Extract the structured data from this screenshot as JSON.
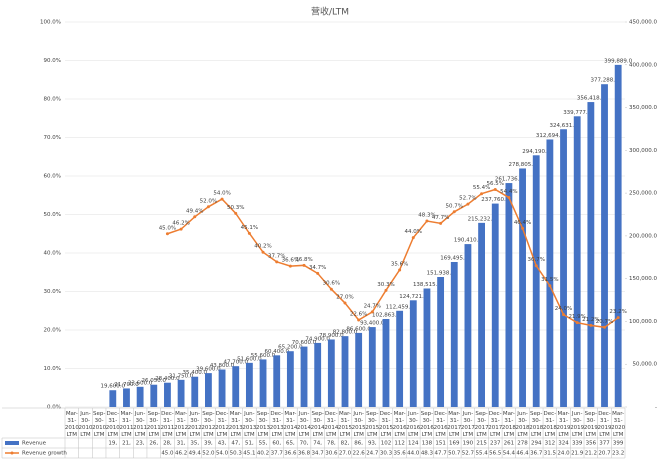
{
  "chart_data": {
    "type": "bar-line",
    "title": "营收/LTM",
    "categories": [
      "Mar-31-2010 LTM",
      "Jun-30-2010 LTM",
      "Sep-30-2010 LTM",
      "Dec-31-2010 LTM",
      "Mar-31-2011 LTM",
      "Jun-30-2011 LTM",
      "Sep-30-2011 LTM",
      "Dec-31-2011 LTM",
      "Mar-31-2012 LTM",
      "Jun-30-2012 LTM",
      "Sep-30-2012 LTM",
      "Dec-31-2012 LTM",
      "Mar-31-2013 LTM",
      "Jun-30-2013 LTM",
      "Sep-30-2013 LTM",
      "Dec-31-2013 LTM",
      "Mar-31-2014 LTM",
      "Jun-30-2014 LTM",
      "Sep-30-2014 LTM",
      "Dec-31-2014 LTM",
      "Mar-31-2015 LTM",
      "Jun-30-2015 LTM",
      "Sep-30-2015 LTM",
      "Dec-31-2015 LTM",
      "Mar-31-2016 LTM",
      "Jun-30-2016 LTM",
      "Sep-30-2016 LTM",
      "Dec-31-2016 LTM",
      "Mar-31-2017 LTM",
      "Jun-30-2017 LTM",
      "Sep-30-2017 LTM",
      "Dec-31-2017 LTM",
      "Mar-31-2018 LTM",
      "Jun-30-2018 LTM",
      "Sep-30-2018 LTM",
      "Dec-31-2018 LTM",
      "Mar-31-2019 LTM",
      "Jun-30-2019 LTM",
      "Sep-30-2019 LTM",
      "Dec-31-2019 LTM",
      "Mar-31-2020 LTM"
    ],
    "series": [
      {
        "name": "Revenue",
        "type": "bar",
        "axis": "y2",
        "color": "#4472c4",
        "values": [
          null,
          null,
          null,
          19600,
          21700,
          23600,
          26050,
          28400,
          31750,
          35400,
          39600,
          43800,
          47700,
          51600,
          55600,
          60400,
          65200,
          70600,
          74900,
          78900,
          82800,
          86600,
          93400,
          102863,
          112459,
          124721,
          138515,
          151938,
          169495,
          190410,
          215232,
          237760,
          261736,
          278805,
          294190,
          312694,
          324631,
          339777,
          356418,
          377288,
          399889
        ],
        "value_labels": [
          null,
          null,
          null,
          "19,600.0",
          "21,700.0",
          "23,600.0",
          "26,050.0",
          "28,400.0",
          "31,750.0",
          "35,400.0",
          "39,600.0",
          "43,800.0",
          "47,700.0",
          "51,600.0",
          "55,600.0",
          "60,400.0",
          "65,200.0",
          "70,600.0",
          "74,900.0",
          "78,900.0",
          "82,800.0",
          "86,600.0",
          "93,400.0",
          "102,863.0",
          "112,459.0",
          "124,721.0",
          "138,515.0",
          "151,938.0",
          "169,495.0",
          "190,410.0",
          "215,232.0",
          "237,760.0",
          "261,736.0",
          "278,805.0",
          "294,190.0",
          "312,694.0",
          "324,631.0",
          "339,777.0",
          "356,418.0",
          "377,288.0",
          "399,889.0"
        ],
        "table_labels": [
          null,
          null,
          null,
          "19,",
          "21,",
          "23,",
          "26,",
          "28,",
          "31,",
          "35,",
          "39,",
          "43,",
          "47,",
          "51,",
          "55,",
          "60,",
          "65,",
          "70,",
          "74,",
          "78,",
          "82,",
          "86,",
          "93,",
          "102",
          "112",
          "124",
          "138",
          "151",
          "169",
          "190",
          "215",
          "237",
          "261",
          "278",
          "294",
          "312",
          "324",
          "339",
          "356",
          "377",
          "399"
        ]
      },
      {
        "name": "Revenue growth",
        "type": "line",
        "axis": "y",
        "color": "#ed7d31",
        "values": [
          null,
          null,
          null,
          null,
          null,
          null,
          null,
          45.0,
          46.2,
          49.4,
          52.0,
          54.0,
          50.3,
          45.1,
          40.2,
          37.7,
          36.6,
          36.8,
          34.7,
          30.6,
          27.0,
          22.6,
          24.7,
          30.3,
          35.6,
          44.0,
          48.3,
          47.7,
          50.7,
          52.7,
          55.4,
          56.5,
          54.4,
          46.4,
          36.7,
          31.5,
          24.0,
          21.9,
          21.2,
          20.7,
          23.2
        ],
        "value_labels": [
          null,
          null,
          null,
          null,
          null,
          null,
          null,
          "45.0%",
          "46.2%",
          "49.4%",
          "52.0%",
          "54.0%",
          "50.3%",
          "45.1%",
          "40.2%",
          "37.7%",
          "36.6%",
          "36.8%",
          "34.7%",
          "30.6%",
          "27.0%",
          "22.6%",
          "24.7%",
          "30.3%",
          "35.6%",
          "44.0%",
          "48.3%",
          "47.7%",
          "50.7%",
          "52.7%",
          "55.4%",
          "56.5%",
          "54.4%",
          "46.4%",
          "36.7%",
          "31.5%",
          "24.0%",
          "21.9%",
          "21.2%",
          "20.7%",
          "23.2%"
        ],
        "table_labels": [
          null,
          null,
          null,
          null,
          null,
          null,
          null,
          "45.0",
          "46.2",
          "49.4",
          "52.0",
          "54.0",
          "50.3",
          "45.1",
          "40.2",
          "37.7",
          "36.6",
          "36.8",
          "34.7",
          "30.6",
          "27.0",
          "22.6",
          "24.7",
          "30.3",
          "35.6",
          "44.0",
          "48.3",
          "47.7",
          "50.7",
          "52.7",
          "55.4",
          "56.5",
          "54.4",
          "46.4",
          "36.7",
          "31.5",
          "24.0",
          "21.9",
          "21.2",
          "20.7",
          "23.2"
        ]
      }
    ],
    "ylim": [
      0,
      100
    ],
    "yticks": [
      {
        "value": 0,
        "label": "0.0%"
      },
      {
        "value": 10,
        "label": "10.0%"
      },
      {
        "value": 20,
        "label": "20.0%"
      },
      {
        "value": 30,
        "label": "30.0%"
      },
      {
        "value": 40,
        "label": "40.0%"
      },
      {
        "value": 50,
        "label": "50.0%"
      },
      {
        "value": 60,
        "label": "60.0%"
      },
      {
        "value": 70,
        "label": "70.0%"
      },
      {
        "value": 80,
        "label": "80.0%"
      },
      {
        "value": 90,
        "label": "90.0%"
      },
      {
        "value": 100,
        "label": "100.0%"
      }
    ],
    "y2lim": [
      0,
      450000
    ],
    "y2ticks": [
      {
        "value": 0,
        "label": "-"
      },
      {
        "value": 50000,
        "label": "50,000.0"
      },
      {
        "value": 100000,
        "label": "100,000.0"
      },
      {
        "value": 150000,
        "label": "150,000.0"
      },
      {
        "value": 200000,
        "label": "200,000.0"
      },
      {
        "value": 250000,
        "label": "250,000.0"
      },
      {
        "value": 300000,
        "label": "300,000.0"
      },
      {
        "value": 350000,
        "label": "350,000.0"
      },
      {
        "value": 400000,
        "label": "400,000.0"
      },
      {
        "value": 450000,
        "label": "450,000.0"
      }
    ],
    "grid": true,
    "data_table": true
  }
}
